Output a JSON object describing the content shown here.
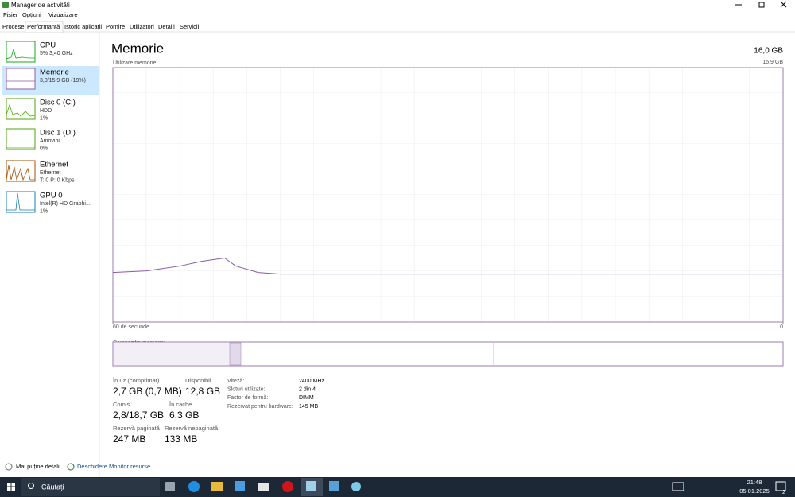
{
  "window": {
    "title": "Manager de activități"
  },
  "menu": [
    "Fișier",
    "Opțiuni",
    "Vizualizare"
  ],
  "tabs": [
    "Procese",
    "Performanță",
    "Istoric aplicații",
    "Pornire",
    "Utilizatori",
    "Detalii",
    "Servicii"
  ],
  "active_tab": 1,
  "sidebar": [
    {
      "name": "CPU",
      "lines": [
        "5% 3,40 GHz"
      ],
      "color": "#17a817"
    },
    {
      "name": "Memorie",
      "lines": [
        "3,0/15,9 GB (19%)"
      ],
      "color": "#8b5aa8"
    },
    {
      "name": "Disc 0 (C:)",
      "lines": [
        "HDD",
        "1%"
      ],
      "color": "#4da60c"
    },
    {
      "name": "Disc 1 (D:)",
      "lines": [
        "Amovibil",
        "0%"
      ],
      "color": "#4da60c"
    },
    {
      "name": "Ethernet",
      "lines": [
        "Ethernet",
        "T: 0 P: 0 Kbps"
      ],
      "color": "#a74f01"
    },
    {
      "name": "GPU 0",
      "lines": [
        "Intel(R) HD Graphi...",
        "1%"
      ],
      "color": "#1a7fb4"
    }
  ],
  "active_item": 1,
  "header": {
    "title": "Memorie",
    "total": "16,0 GB"
  },
  "chart_data": {
    "type": "line",
    "ylabel": "Utilizare memorie",
    "x": [
      60,
      57,
      56,
      54,
      52,
      50,
      49,
      47,
      45,
      22,
      0
    ],
    "values": [
      3.1,
      3.2,
      3.3,
      3.5,
      3.8,
      4.0,
      3.5,
      3.1,
      3.0,
      3.0,
      3.0
    ],
    "xlim": [
      60,
      0
    ],
    "ylim": [
      0,
      15.9
    ],
    "xticks": [
      {
        "value": 60,
        "label": "60 de secunde"
      },
      0
    ],
    "yticks": [
      {
        "value": 15.9,
        "label": "15,9 GB"
      }
    ],
    "color": "#8b5aa8"
  },
  "composition_label": "Compoziția memoriei",
  "stats": [
    {
      "label": "În uz (comprimat)",
      "value": "2,7 GB (0,7 MB)"
    },
    {
      "label": "Disponibil",
      "value": "12,8 GB"
    },
    {
      "label": "Comis",
      "value": "2,8/18,7 GB"
    },
    {
      "label": "În cache",
      "value": "6,3 GB"
    },
    {
      "label": "Rezervă paginată",
      "value": "247 MB"
    },
    {
      "label": "Rezervă nepaginată",
      "value": "133 MB"
    }
  ],
  "details": [
    [
      "Viteză:",
      "2400 MHz"
    ],
    [
      "Sloturi utilizate:",
      "2 din 4"
    ],
    [
      "Factor de formă:",
      "DIMM"
    ],
    [
      "Rezervat pentru hardware:",
      "145 MB"
    ]
  ],
  "footer": {
    "less": "Mai puține detalii",
    "monitor": "Deschidere Monitor resurse"
  },
  "taskbar": {
    "search": "Căutați",
    "time": "21:48",
    "date": "05.01.2025",
    "notifications": "2"
  }
}
